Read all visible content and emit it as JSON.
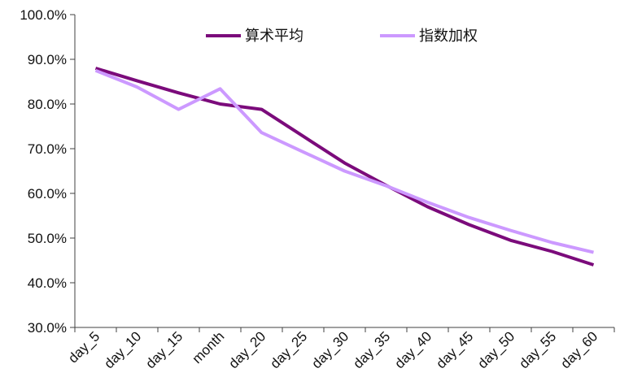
{
  "chart_data": {
    "type": "line",
    "title": "",
    "xlabel": "",
    "ylabel": "",
    "categories": [
      "day_5",
      "day_10",
      "day_15",
      "month",
      "day_20",
      "day_25",
      "day_30",
      "day_35",
      "day_40",
      "day_45",
      "day_50",
      "day_55",
      "day_60"
    ],
    "y_ticks": [
      "30.0%",
      "40.0%",
      "50.0%",
      "60.0%",
      "70.0%",
      "80.0%",
      "90.0%",
      "100.0%"
    ],
    "ylim": [
      30,
      100
    ],
    "grid": false,
    "legend_position": "top",
    "series": [
      {
        "name": "算术平均",
        "color": "#7b0b7b",
        "values": [
          88.0,
          85.2,
          82.5,
          80.0,
          78.8,
          72.8,
          66.8,
          61.8,
          57.0,
          53.0,
          49.5,
          47.0,
          44.0
        ]
      },
      {
        "name": "指数加权",
        "color": "#cc99ff",
        "values": [
          87.5,
          83.8,
          78.8,
          83.4,
          73.6,
          69.3,
          65.0,
          61.7,
          58.0,
          54.6,
          51.7,
          49.0,
          46.8
        ]
      }
    ]
  }
}
